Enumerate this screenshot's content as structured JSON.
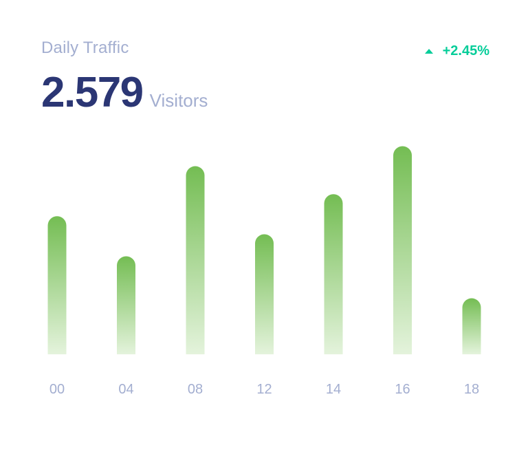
{
  "card": {
    "title": "Daily Traffic",
    "value": "2.579",
    "unit": "Visitors",
    "change": "+2.45%",
    "change_icon": "triangle-up-icon",
    "change_color": "#05cd99"
  },
  "chart_data": {
    "type": "bar",
    "title": "",
    "xlabel": "",
    "ylabel": "",
    "categories": [
      "00",
      "04",
      "08",
      "12",
      "14",
      "16",
      "18"
    ],
    "values": [
      69,
      49,
      94,
      60,
      80,
      104,
      28
    ],
    "ylim": [
      0,
      110
    ],
    "grid": false,
    "bar_gradient": [
      "#74bd53",
      "#e4f3dc"
    ],
    "tick_color": "#a3aed0"
  }
}
